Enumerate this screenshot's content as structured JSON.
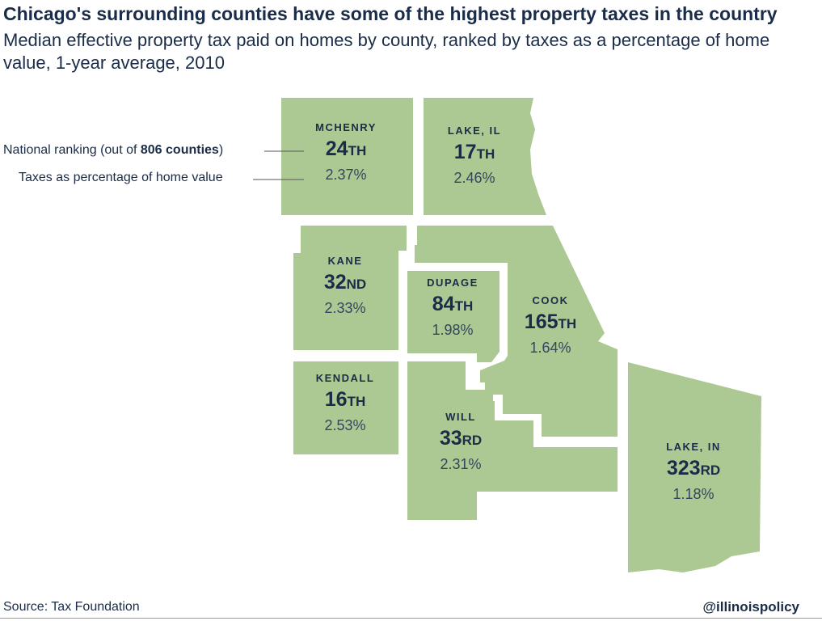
{
  "title": "Chicago's surrounding counties have some of the highest property taxes in the country",
  "subtitle": "Median effective property tax paid on homes by county, ranked by taxes as a percentage of home value, 1-year average, 2010",
  "legend": {
    "ranking_prefix": "National ranking (out of ",
    "ranking_bold": "806 counties",
    "ranking_suffix": ")",
    "percent_label": "Taxes as percentage of home value"
  },
  "colors": {
    "county_fill": "#adc993",
    "text": "#1a2c47"
  },
  "counties": [
    {
      "id": "mchenry",
      "name": "MCHENRY",
      "rank": "24",
      "suffix": "TH",
      "percent": "2.37%"
    },
    {
      "id": "lake-il",
      "name": "LAKE, IL",
      "rank": "17",
      "suffix": "TH",
      "percent": "2.46%"
    },
    {
      "id": "kane",
      "name": "KANE",
      "rank": "32",
      "suffix": "ND",
      "percent": "2.33%"
    },
    {
      "id": "dupage",
      "name": "DUPAGE",
      "rank": "84",
      "suffix": "TH",
      "percent": "1.98%"
    },
    {
      "id": "cook",
      "name": "COOK",
      "rank": "165",
      "suffix": "TH",
      "percent": "1.64%"
    },
    {
      "id": "kendall",
      "name": "KENDALL",
      "rank": "16",
      "suffix": "TH",
      "percent": "2.53%"
    },
    {
      "id": "will",
      "name": "WILL",
      "rank": "33",
      "suffix": "RD",
      "percent": "2.31%"
    },
    {
      "id": "lake-in",
      "name": "LAKE, IN",
      "rank": "323",
      "suffix": "RD",
      "percent": "1.18%"
    }
  ],
  "source": "Source: Tax Foundation",
  "handle": "@illinoispolicy"
}
